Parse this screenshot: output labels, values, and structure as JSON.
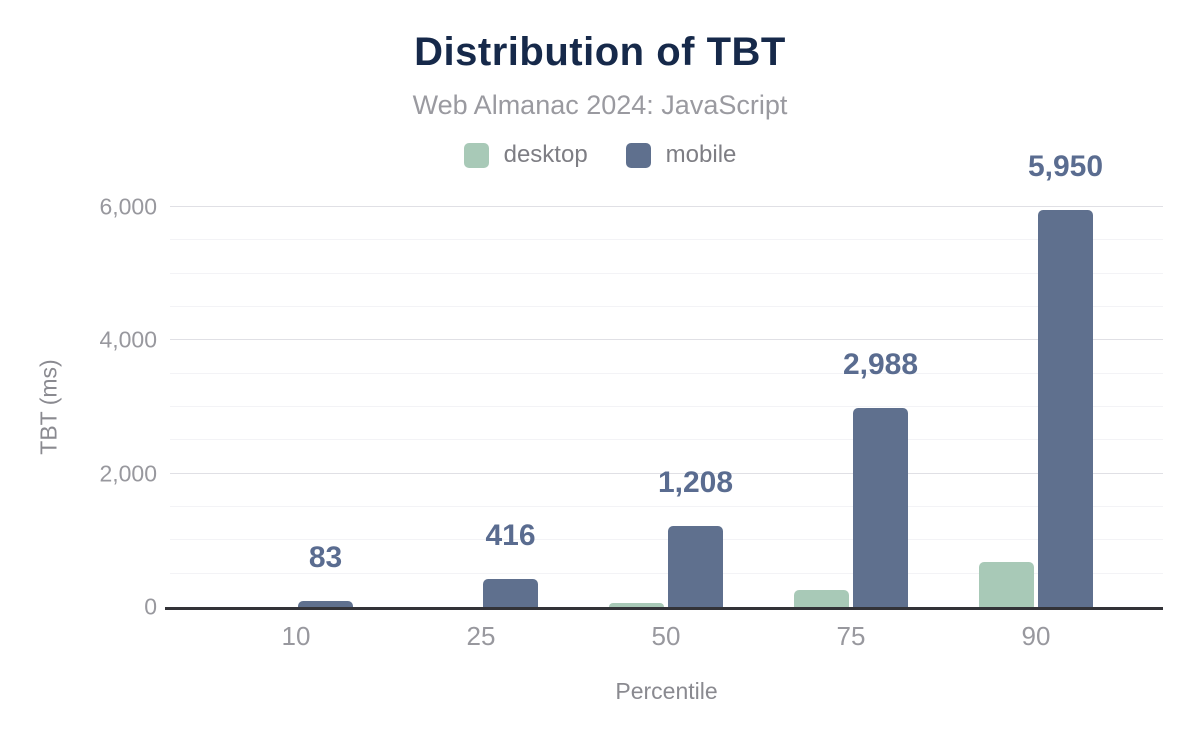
{
  "figure": {
    "title": "Distribution of TBT",
    "subtitle": "Web Almanac 2024: JavaScript"
  },
  "legend": [
    {
      "label": "desktop",
      "color": "#a8c9b7"
    },
    {
      "label": "mobile",
      "color": "#5f708e"
    }
  ],
  "chart_data": {
    "type": "bar",
    "title": "Distribution of TBT",
    "subtitle": "Web Almanac 2024: JavaScript",
    "categories": [
      "10",
      "25",
      "50",
      "75",
      "90"
    ],
    "series": [
      {
        "name": "desktop",
        "color": "#a8c9b7",
        "values": [
          0,
          0,
          65,
          260,
          670
        ]
      },
      {
        "name": "mobile",
        "color": "#5f708e",
        "values": [
          83,
          416,
          1208,
          2988,
          5950
        ],
        "value_labels": [
          "83",
          "416",
          "1,208",
          "2,988",
          "5,950"
        ]
      }
    ],
    "xlabel": "Percentile",
    "ylabel": "TBT (ms)",
    "ylim": [
      0,
      6000
    ],
    "yticks": [
      0,
      2000,
      4000,
      6000
    ],
    "ytick_labels": [
      "0",
      "2,000",
      "4,000",
      "6,000"
    ],
    "minor_grid_step": 500,
    "grid": true,
    "legend_position": "top",
    "value_labels_on": "mobile"
  },
  "colors": {
    "title": "#16294a",
    "subtitle": "#9a9aa0",
    "value_label": "#5a6c90",
    "axis_line": "#333338",
    "tick_text": "#98989e",
    "grid_major": "#e0e0e5",
    "grid_minor": "#f3f3f6",
    "background": "#ffffff"
  }
}
